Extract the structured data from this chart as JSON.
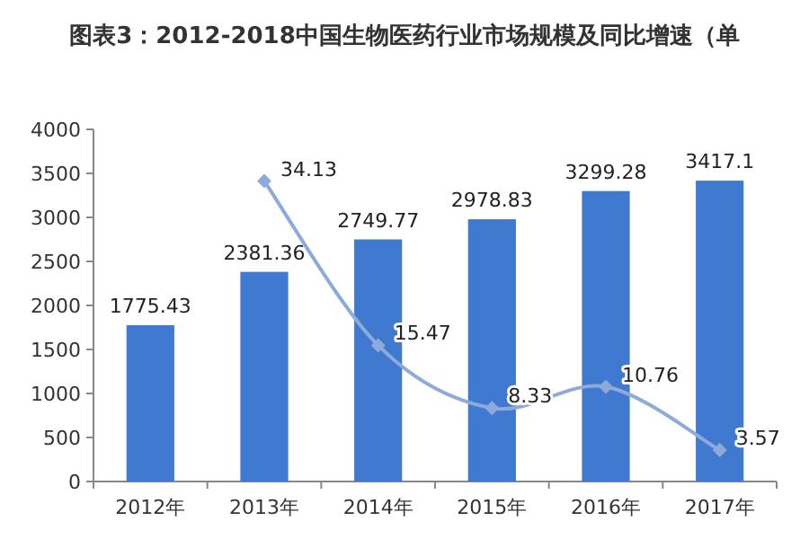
{
  "chart_data": {
    "type": "bar",
    "title": "图表3：2012-2018中国生物医药行业市场规模及同比增速（单",
    "categories": [
      "2012年",
      "2013年",
      "2014年",
      "2015年",
      "2016年",
      "2017年"
    ],
    "ylim": [
      0,
      4000
    ],
    "yticks": [
      0,
      500,
      1000,
      1500,
      2000,
      2500,
      3000,
      3500,
      4000
    ],
    "y2lim": [
      0,
      40
    ],
    "marker": "diamond",
    "grid": false,
    "series": [
      {
        "color": "#3f7ad0",
        "values": [
          1775.43,
          2381.36,
          2749.77,
          2978.83,
          3299.28,
          3417.1
        ],
        "value_labels": [
          "1775.43",
          "2381.36",
          "2749.77",
          "2978.83",
          "3299.28",
          "3417.1"
        ]
      },
      {
        "type": "line",
        "axis": "y2",
        "color": "#8eaadb",
        "values": [
          null,
          34.13,
          15.47,
          8.33,
          10.76,
          3.57
        ],
        "value_labels": [
          null,
          "34.13",
          "15.47",
          "8.33",
          "10.76",
          "3.57"
        ]
      }
    ]
  }
}
